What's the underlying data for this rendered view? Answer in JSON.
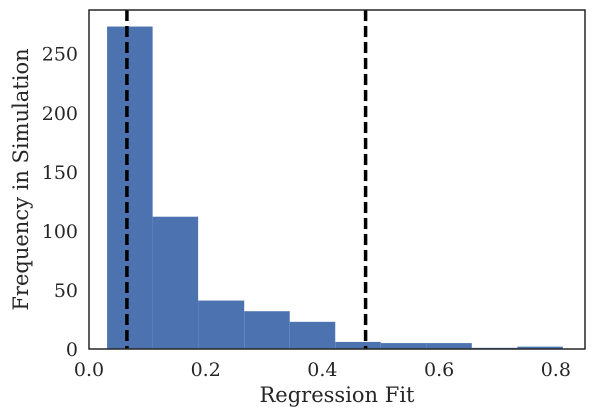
{
  "chart_data": {
    "type": "bar",
    "title": "",
    "xlabel": "Regression Fit",
    "ylabel": "Frequency in Simulation",
    "xlim": [
      0.0,
      0.85
    ],
    "ylim": [
      0,
      287
    ],
    "grid": false,
    "xticks": [
      0.0,
      0.2,
      0.4,
      0.6,
      0.8
    ],
    "xtick_labels": [
      "0.0",
      "0.2",
      "0.4",
      "0.6",
      "0.8"
    ],
    "yticks": [
      0,
      50,
      100,
      150,
      200,
      250
    ],
    "ytick_labels": [
      "0",
      "50",
      "100",
      "150",
      "200",
      "250"
    ],
    "bins": [
      {
        "x0": 0.031,
        "x1": 0.109,
        "count": 273
      },
      {
        "x0": 0.109,
        "x1": 0.187,
        "count": 112
      },
      {
        "x0": 0.187,
        "x1": 0.266,
        "count": 41
      },
      {
        "x0": 0.266,
        "x1": 0.344,
        "count": 32
      },
      {
        "x0": 0.344,
        "x1": 0.422,
        "count": 23
      },
      {
        "x0": 0.422,
        "x1": 0.5,
        "count": 6
      },
      {
        "x0": 0.5,
        "x1": 0.578,
        "count": 5
      },
      {
        "x0": 0.578,
        "x1": 0.656,
        "count": 5
      },
      {
        "x0": 0.656,
        "x1": 0.734,
        "count": 1
      },
      {
        "x0": 0.734,
        "x1": 0.812,
        "count": 2
      }
    ],
    "vlines": [
      0.065,
      0.474
    ],
    "bar_color": "#4c72b0",
    "vline_color": "#000000"
  }
}
